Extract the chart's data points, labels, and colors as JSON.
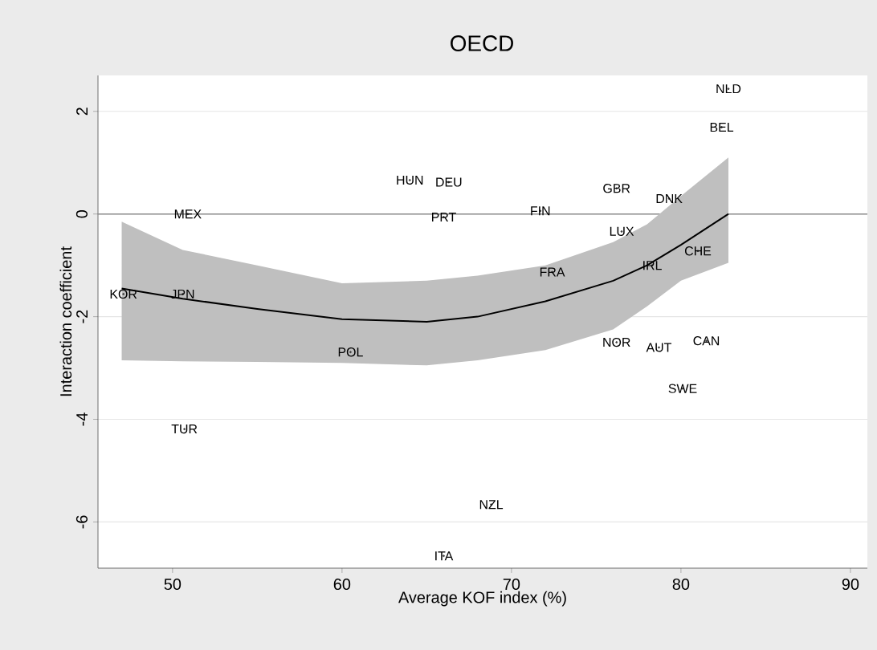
{
  "chart_data": {
    "type": "scatter",
    "title": "OECD",
    "xlabel": "Average KOF index (%)",
    "ylabel": "Interaction coefficient",
    "xlim": [
      45.6,
      91
    ],
    "ylim": [
      -6.9,
      2.7
    ],
    "xticks": [
      50,
      60,
      70,
      80,
      90
    ],
    "yticks": [
      -6,
      -4,
      -2,
      0,
      2
    ],
    "grid": "y",
    "ref_lines": [
      {
        "axis": "y",
        "value": 0,
        "color": "#8c8c8c"
      }
    ],
    "series": [
      {
        "type": "line",
        "color": "#000000",
        "x": [
          47,
          50.6,
          55,
          60,
          65,
          68,
          72,
          76,
          78,
          80,
          82.8
        ],
        "values": [
          -1.45,
          -1.65,
          -1.85,
          -2.05,
          -2.1,
          -2.0,
          -1.7,
          -1.3,
          -1.0,
          -0.6,
          0.0
        ],
        "lower": [
          -2.85,
          -2.87,
          -2.88,
          -2.9,
          -2.95,
          -2.85,
          -2.65,
          -2.25,
          -1.8,
          -1.3,
          -0.95
        ],
        "upper": [
          -0.15,
          -0.7,
          -1.0,
          -1.35,
          -1.3,
          -1.2,
          -1.0,
          -0.55,
          -0.2,
          0.35,
          1.1
        ]
      },
      {
        "marker": "none",
        "color": "#404040",
        "x": [
          82.8,
          82.4,
          64.0,
          66.3,
          66.0,
          71.7,
          76.2,
          79.3,
          76.5,
          81.0,
          78.3,
          72.4,
          76.2,
          78.7,
          81.5,
          80.1,
          68.8,
          66.0,
          50.9,
          47.1,
          50.6,
          60.5,
          50.7
        ],
        "values": [
          2.44,
          1.69,
          0.66,
          0.62,
          -0.06,
          0.06,
          0.5,
          0.3,
          -0.34,
          -0.72,
          -1.0,
          -1.13,
          -2.5,
          -2.6,
          -2.47,
          -3.4,
          -5.66,
          -6.66,
          0.0,
          -1.56,
          -1.56,
          -2.69,
          -4.19
        ],
        "value_labels": [
          "NLD",
          "BEL",
          "HUN",
          "DEU",
          "PRT",
          "FIN",
          "GBR",
          "DNK",
          "LUX",
          "CHE",
          "IRL",
          "FRA",
          "NOR",
          "AUT",
          "CAN",
          "SWE",
          "NZL",
          "ITA",
          "MEX",
          "KOR",
          "JPN",
          "POL",
          "TUR"
        ]
      }
    ]
  }
}
